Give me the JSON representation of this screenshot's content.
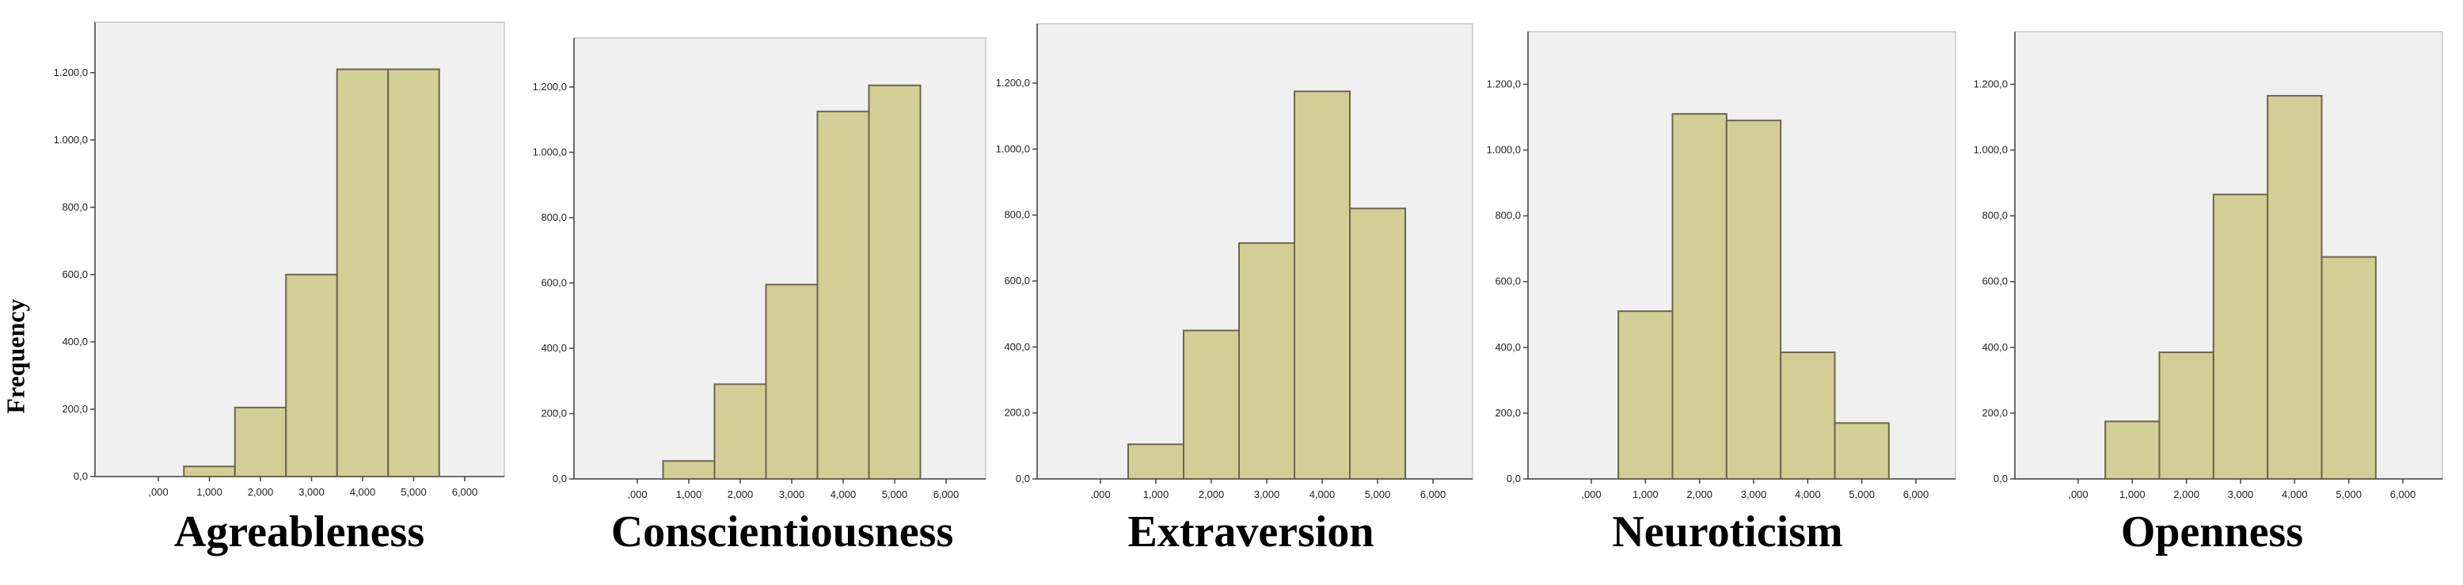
{
  "y_axis_title": "Frequency",
  "colors": {
    "bar_fill": "#D3CE96",
    "bar_stroke": "#6B6647",
    "plot_bg": "#F0F0F0",
    "axis": "#444444"
  },
  "chart_data": [
    {
      "type": "bar",
      "title": "Agreableness",
      "ylabel": "Frequency",
      "x_ticks": [
        ",000",
        "1,000",
        "2,000",
        "3,000",
        "4,000",
        "5,000",
        "6,000"
      ],
      "y_ticks": [
        "0,0",
        "200,0",
        "400,0",
        "600,0",
        "800,0",
        "1.000,0",
        "1.200,0"
      ],
      "y_tick_values": [
        0,
        200,
        400,
        600,
        800,
        1000,
        1200
      ],
      "xlim": [
        0,
        6
      ],
      "ylim": [
        0,
        1350
      ],
      "bin_edges": [
        0.5,
        1.5,
        2.5,
        3.5,
        4.5,
        5.5
      ],
      "values": [
        30,
        205,
        600,
        1210,
        1210
      ]
    },
    {
      "type": "bar",
      "title": "Conscientiousness",
      "x_ticks": [
        ",000",
        "1,000",
        "2,000",
        "3,000",
        "4,000",
        "5,000",
        "6,000"
      ],
      "y_ticks": [
        "0,0",
        "200,0",
        "400,0",
        "600,0",
        "800,0",
        "1.000,0",
        "1.200,0"
      ],
      "y_tick_values": [
        0,
        200,
        400,
        600,
        800,
        1000,
        1200
      ],
      "xlim": [
        0,
        6
      ],
      "ylim": [
        0,
        1350
      ],
      "bin_edges": [
        0.5,
        1.5,
        2.5,
        3.5,
        4.5,
        5.5
      ],
      "values": [
        55,
        290,
        595,
        1125,
        1205
      ]
    },
    {
      "type": "bar",
      "title": "Extraversion",
      "x_ticks": [
        ",000",
        "1,000",
        "2,000",
        "3,000",
        "4,000",
        "5,000",
        "6,000"
      ],
      "y_ticks": [
        "0,0",
        "200,0",
        "400,0",
        "600,0",
        "800,0",
        "1.000,0",
        "1.200,0"
      ],
      "y_tick_values": [
        0,
        200,
        400,
        600,
        800,
        1000,
        1200
      ],
      "xlim": [
        0,
        6
      ],
      "ylim": [
        0,
        1380
      ],
      "bin_edges": [
        0.5,
        1.5,
        2.5,
        3.5,
        4.5,
        5.5
      ],
      "values": [
        105,
        450,
        715,
        1175,
        820
      ]
    },
    {
      "type": "bar",
      "title": "Neuroticism",
      "x_ticks": [
        ",000",
        "1,000",
        "2,000",
        "3,000",
        "4,000",
        "5,000",
        "6,000"
      ],
      "y_ticks": [
        "0,0",
        "200,0",
        "400,0",
        "600,0",
        "800,0",
        "1.000,0",
        "1.200,0"
      ],
      "y_tick_values": [
        0,
        200,
        400,
        600,
        800,
        1000,
        1200
      ],
      "xlim": [
        0,
        6
      ],
      "ylim": [
        0,
        1360
      ],
      "bin_edges": [
        0.5,
        1.5,
        2.5,
        3.5,
        4.5,
        5.5
      ],
      "values": [
        510,
        1110,
        1090,
        385,
        170
      ]
    },
    {
      "type": "bar",
      "title": "Openness",
      "x_ticks": [
        ",000",
        "1,000",
        "2,000",
        "3,000",
        "4,000",
        "5,000",
        "6,000"
      ],
      "y_ticks": [
        "0,0",
        "200,0",
        "400,0",
        "600,0",
        "800,0",
        "1.000,0",
        "1.200,0"
      ],
      "y_tick_values": [
        0,
        200,
        400,
        600,
        800,
        1000,
        1200
      ],
      "xlim": [
        0,
        6
      ],
      "ylim": [
        0,
        1360
      ],
      "bin_edges": [
        0.5,
        1.5,
        2.5,
        3.5,
        4.5,
        5.5
      ],
      "values": [
        175,
        385,
        865,
        1165,
        675
      ]
    }
  ]
}
